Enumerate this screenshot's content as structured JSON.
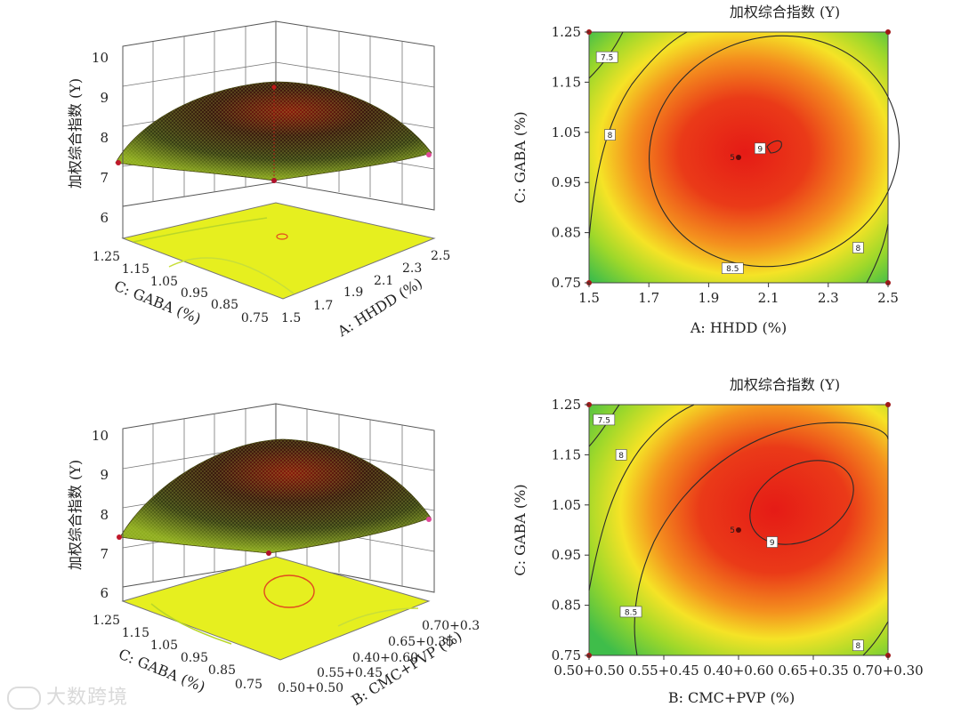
{
  "chart_data": [
    {
      "id": "p1",
      "type": "surface3d",
      "zlabel": "加权综合指数 (Y)",
      "zticks": [
        "6",
        "7",
        "8",
        "9",
        "10"
      ],
      "zlim": [
        6,
        10
      ],
      "left_axis": {
        "label": "C: GABA (%)",
        "ticks": [
          "1.25",
          "1.15",
          "1.05",
          "0.95",
          "0.85",
          "0.75"
        ]
      },
      "right_axis": {
        "label": "A: HHDD (%)",
        "ticks": [
          "1.5",
          "1.7",
          "1.9",
          "2.1",
          "2.3",
          "2.5"
        ]
      },
      "peak": 9.1,
      "corner_values": [
        7.3,
        7.0,
        7.5,
        7.0
      ],
      "floor_color": "#e8f020"
    },
    {
      "id": "p2",
      "type": "contour",
      "title": "加权综合指数 (Y)",
      "xlabel": "A: HHDD (%)",
      "ylabel": "C: GABA (%)",
      "xticks": [
        "1.5",
        "1.7",
        "1.9",
        "2.1",
        "2.3",
        "2.5"
      ],
      "yticks": [
        "0.75",
        "0.85",
        "0.95",
        "1.05",
        "1.15",
        "1.25"
      ],
      "xlim": [
        1.5,
        2.5
      ],
      "ylim": [
        0.75,
        1.25
      ],
      "contour_labels": [
        {
          "text": "7.5",
          "x": 1.56,
          "y": 1.2
        },
        {
          "text": "8",
          "x": 1.57,
          "y": 1.045
        },
        {
          "text": "8.5",
          "x": 1.98,
          "y": 0.779
        },
        {
          "text": "9",
          "x": 2.072,
          "y": 1.018
        },
        {
          "text": "8",
          "x": 2.4,
          "y": 0.82
        }
      ],
      "center_point": {
        "label": "5",
        "x": 2.0,
        "y": 1.0
      },
      "optimum": {
        "x": 2.05,
        "y": 1.05
      }
    },
    {
      "id": "p3",
      "type": "surface3d",
      "zlabel": "加权综合指数 (Y)",
      "zticks": [
        "6",
        "7",
        "8",
        "9",
        "10"
      ],
      "zlim": [
        6,
        10
      ],
      "left_axis": {
        "label": "C: GABA (%)",
        "ticks": [
          "1.25",
          "1.15",
          "1.05",
          "0.95",
          "0.85",
          "0.75"
        ]
      },
      "right_axis": {
        "label": "B: CMC+PVP (%)",
        "ticks": [
          "0.50+0.50",
          "0.55+0.45",
          "0.40+0.60",
          "0.65+0.35",
          "0.70+0.30"
        ]
      },
      "peak": 9.2,
      "corner_values": [
        7.5,
        7.2,
        7.4,
        7.0
      ],
      "floor_color": "#e8f020"
    },
    {
      "id": "p4",
      "type": "contour",
      "title": "加权综合指数 (Y)",
      "xlabel": "B: CMC+PVP (%)",
      "ylabel": "C: GABA (%)",
      "xticks": [
        "0.50+0.50",
        "0.55+0.45",
        "0.40+0.60",
        "0.65+0.35",
        "0.70+0.30"
      ],
      "yticks": [
        "0.75",
        "0.85",
        "0.95",
        "1.05",
        "1.15",
        "1.25"
      ],
      "xlim": [
        0,
        4
      ],
      "ylim": [
        0.75,
        1.25
      ],
      "contour_labels": [
        {
          "text": "7.5",
          "x": 0.2,
          "y": 1.22
        },
        {
          "text": "8",
          "x": 0.43,
          "y": 1.15
        },
        {
          "text": "8.5",
          "x": 0.56,
          "y": 0.837
        },
        {
          "text": "9",
          "x": 2.45,
          "y": 0.976
        },
        {
          "text": "8",
          "x": 3.6,
          "y": 0.77
        }
      ],
      "center_point": {
        "label": "5",
        "x": 2.0,
        "y": 1.0
      },
      "optimum": {
        "x": 2.8,
        "y": 1.05
      }
    }
  ],
  "watermark": {
    "text": "大数跨境"
  }
}
